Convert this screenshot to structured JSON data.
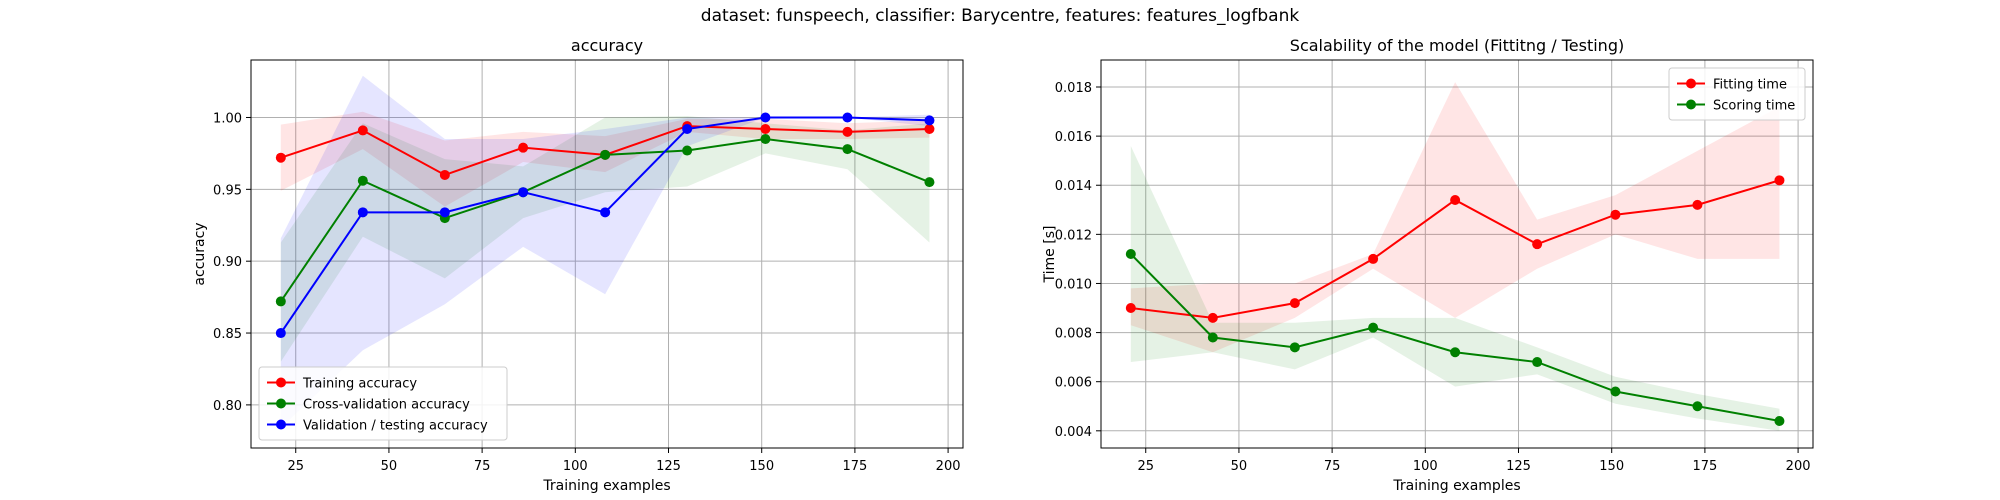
{
  "suptitle": "dataset: funspeech, classifier: Barycentre, features: features_logfbank",
  "chart_data": [
    {
      "type": "line",
      "title": "accuracy",
      "xlabel": "Training examples",
      "ylabel": "accuracy",
      "xlim": [
        13,
        204
      ],
      "ylim": [
        0.77,
        1.04
      ],
      "xticks": [
        25,
        50,
        75,
        100,
        125,
        150,
        175,
        200
      ],
      "yticks": [
        0.8,
        0.85,
        0.9,
        0.95,
        1.0
      ],
      "ytick_labels": [
        "0.80",
        "0.85",
        "0.90",
        "0.95",
        "1.00"
      ],
      "grid": true,
      "legend_position": "lower-left",
      "x": [
        21,
        43,
        65,
        86,
        108,
        130,
        151,
        173,
        195
      ],
      "series": [
        {
          "name": "Training accuracy",
          "color": "#ff0000",
          "values": [
            0.972,
            0.991,
            0.96,
            0.979,
            0.974,
            0.994,
            0.992,
            0.99,
            0.992
          ],
          "band_low": [
            0.949,
            0.978,
            0.938,
            0.969,
            0.962,
            0.99,
            0.985,
            0.985,
            0.986
          ],
          "band_high": [
            0.995,
            1.004,
            0.984,
            0.99,
            0.987,
            0.999,
            0.999,
            0.996,
            0.998
          ]
        },
        {
          "name": "Cross-validation accuracy",
          "color": "#008000",
          "values": [
            0.872,
            0.956,
            0.93,
            0.948,
            0.974,
            0.977,
            0.985,
            0.978,
            0.955
          ],
          "band_low": [
            0.83,
            0.917,
            0.888,
            0.93,
            0.948,
            0.952,
            0.975,
            0.964,
            0.913
          ],
          "band_high": [
            0.913,
            0.996,
            0.971,
            0.966,
            1.0,
            1.001,
            0.996,
            0.991,
            0.996
          ]
        },
        {
          "name": "Validation / testing accuracy",
          "color": "#0000ff",
          "values": [
            0.85,
            0.934,
            0.934,
            0.948,
            0.934,
            0.992,
            1.0,
            1.0,
            0.998
          ],
          "band_low": [
            0.784,
            0.838,
            0.87,
            0.91,
            0.877,
            0.98,
            1.0,
            1.0,
            0.994
          ],
          "band_high": [
            0.916,
            1.029,
            0.985,
            0.985,
            0.992,
            1.0,
            1.0,
            1.0,
            1.002
          ]
        }
      ]
    },
    {
      "type": "line",
      "title": "Scalability of the model (Fittitng / Testing)",
      "xlabel": "Training examples",
      "ylabel": "Time [s]",
      "xlim": [
        13,
        204
      ],
      "ylim": [
        0.0033,
        0.0191
      ],
      "xticks": [
        25,
        50,
        75,
        100,
        125,
        150,
        175,
        200
      ],
      "yticks": [
        0.004,
        0.006,
        0.008,
        0.01,
        0.012,
        0.014,
        0.016,
        0.018
      ],
      "ytick_labels": [
        "0.004",
        "0.006",
        "0.008",
        "0.010",
        "0.012",
        "0.014",
        "0.016",
        "0.018"
      ],
      "grid": true,
      "legend_position": "upper-right",
      "x": [
        21,
        43,
        65,
        86,
        108,
        130,
        151,
        173,
        195
      ],
      "series": [
        {
          "name": "Fitting time",
          "color": "#ff0000",
          "values": [
            0.009,
            0.0086,
            0.0092,
            0.011,
            0.0134,
            0.0116,
            0.0128,
            0.0132,
            0.0142
          ],
          "band_low": [
            0.0083,
            0.0072,
            0.0086,
            0.0106,
            0.0086,
            0.0106,
            0.012,
            0.011,
            0.011
          ],
          "band_high": [
            0.0098,
            0.01,
            0.01,
            0.0112,
            0.0182,
            0.0126,
            0.0136,
            0.0154,
            0.0172
          ]
        },
        {
          "name": "Scoring time",
          "color": "#008000",
          "values": [
            0.0112,
            0.0078,
            0.0074,
            0.0082,
            0.0072,
            0.0068,
            0.0056,
            0.005,
            0.0044
          ],
          "band_low": [
            0.0068,
            0.0072,
            0.0065,
            0.0078,
            0.0058,
            0.0063,
            0.0051,
            0.0045,
            0.004
          ],
          "band_high": [
            0.0156,
            0.0084,
            0.0084,
            0.0086,
            0.0086,
            0.0074,
            0.0062,
            0.0055,
            0.0049
          ]
        }
      ]
    }
  ]
}
